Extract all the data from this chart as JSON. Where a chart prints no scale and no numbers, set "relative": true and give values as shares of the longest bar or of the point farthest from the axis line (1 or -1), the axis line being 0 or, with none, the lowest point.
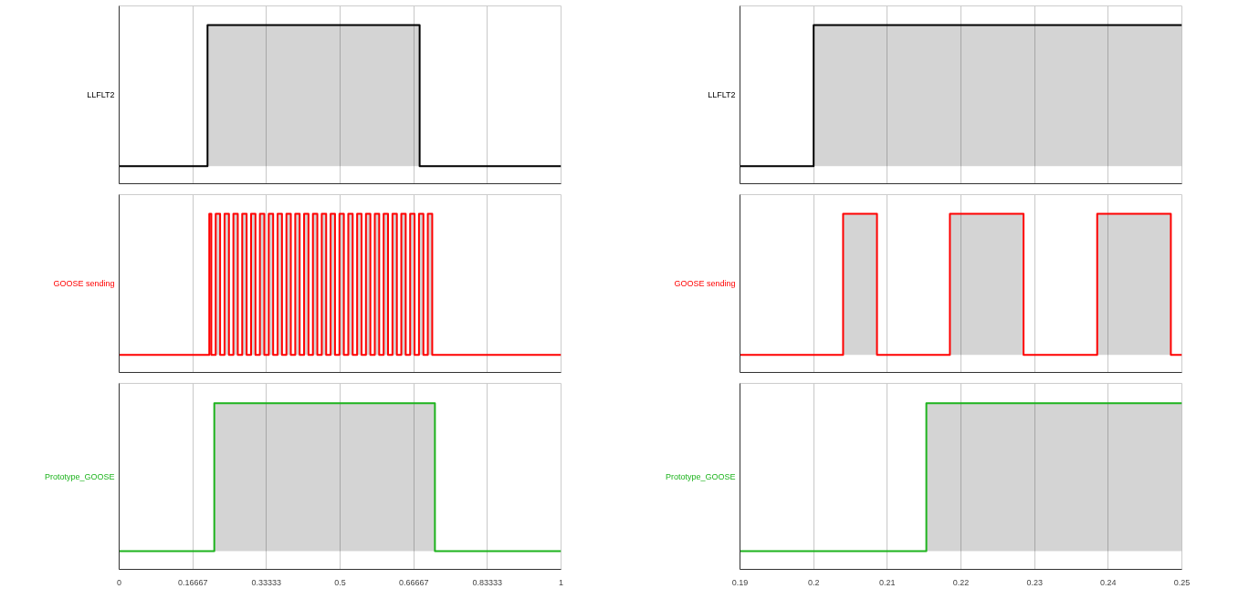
{
  "chart_data": [
    {
      "type": "area",
      "relative": true,
      "ylabel": "LLFLT2",
      "xlim": [
        0,
        1
      ],
      "xticks": [
        0,
        0.16667,
        0.33333,
        0.5,
        0.66667,
        0.83333,
        1
      ],
      "grid": "x",
      "tick_labels": false,
      "marker": "none",
      "series": [
        {
          "color": "#000000",
          "x": [
            0,
            0.2,
            0.2,
            0.68,
            0.68,
            1
          ],
          "values": [
            0.11,
            0.11,
            1,
            1,
            0.11,
            0.11
          ]
        }
      ]
    },
    {
      "type": "area",
      "relative": true,
      "ylabel": "GOOSE sending",
      "xlim": [
        0,
        1
      ],
      "xticks": [
        0,
        0.16667,
        0.33333,
        0.5,
        0.66667,
        0.83333,
        1
      ],
      "grid": "x",
      "tick_labels": false,
      "marker": "none",
      "series": [
        {
          "color": "#ff0000",
          "x": [
            0,
            0.204,
            0.204,
            0.2086,
            0.2086,
            0.2185,
            0.2185,
            0.2285,
            0.2285,
            0.2385,
            0.2385,
            0.2485,
            0.2485,
            0.2585,
            0.2585,
            0.2685,
            0.2685,
            0.2785,
            0.2785,
            0.2885,
            0.2885,
            0.2985,
            0.2985,
            0.3085,
            0.3085,
            0.3185,
            0.3185,
            0.3285,
            0.3285,
            0.3385,
            0.3385,
            0.3485,
            0.3485,
            0.3585,
            0.3585,
            0.3685,
            0.3685,
            0.3785,
            0.3785,
            0.3885,
            0.3885,
            0.3985,
            0.3985,
            0.4085,
            0.4085,
            0.4185,
            0.4185,
            0.4285,
            0.4285,
            0.4385,
            0.4385,
            0.4485,
            0.4485,
            0.4585,
            0.4585,
            0.4685,
            0.4685,
            0.4785,
            0.4785,
            0.4885,
            0.4885,
            0.4985,
            0.4985,
            0.5085,
            0.5085,
            0.5185,
            0.5185,
            0.5285,
            0.5285,
            0.5385,
            0.5385,
            0.5485,
            0.5485,
            0.5585,
            0.5585,
            0.5685,
            0.5685,
            0.5785,
            0.5785,
            0.5885,
            0.5885,
            0.5985,
            0.5985,
            0.6085,
            0.6085,
            0.6185,
            0.6185,
            0.6285,
            0.6285,
            0.6385,
            0.6385,
            0.6485,
            0.6485,
            0.6585,
            0.6585,
            0.6685,
            0.6685,
            0.6785,
            0.6785,
            0.6885,
            0.6885,
            0.6985,
            0.6985,
            0.7085,
            0.7085,
            1
          ],
          "values": [
            0.11,
            0.11,
            1,
            1,
            0.11,
            0.11,
            1,
            1,
            0.11,
            0.11,
            1,
            1,
            0.11,
            0.11,
            1,
            1,
            0.11,
            0.11,
            1,
            1,
            0.11,
            0.11,
            1,
            1,
            0.11,
            0.11,
            1,
            1,
            0.11,
            0.11,
            1,
            1,
            0.11,
            0.11,
            1,
            1,
            0.11,
            0.11,
            1,
            1,
            0.11,
            0.11,
            1,
            1,
            0.11,
            0.11,
            1,
            1,
            0.11,
            0.11,
            1,
            1,
            0.11,
            0.11,
            1,
            1,
            0.11,
            0.11,
            1,
            1,
            0.11,
            0.11,
            1,
            1,
            0.11,
            0.11,
            1,
            1,
            0.11,
            0.11,
            1,
            1,
            0.11,
            0.11,
            1,
            1,
            0.11,
            0.11,
            1,
            1,
            0.11,
            0.11,
            1,
            1,
            0.11,
            0.11,
            1,
            1,
            0.11,
            0.11,
            1,
            1,
            0.11,
            0.11,
            1,
            1,
            0.11,
            0.11,
            1,
            1,
            0.11,
            0.11,
            1,
            1,
            0.11,
            0.11
          ]
        }
      ]
    },
    {
      "type": "area",
      "relative": true,
      "ylabel": "Prototype_GOOSE",
      "xlim": [
        0,
        1
      ],
      "xticks": [
        0,
        {
          "value": 0.16667,
          "label": "0.16667"
        },
        {
          "value": 0.33333,
          "label": "0.33333"
        },
        0.5,
        {
          "value": 0.66667,
          "label": "0.66667"
        },
        {
          "value": 0.83333,
          "label": "0.83333"
        },
        1
      ],
      "grid": "x",
      "tick_labels": "x",
      "marker": "none",
      "series": [
        {
          "color": "#1db31d",
          "x": [
            0,
            0.2153,
            0.2153,
            0.7146,
            0.7146,
            1
          ],
          "values": [
            0.11,
            0.11,
            1,
            1,
            0.11,
            0.11
          ]
        }
      ]
    },
    {
      "type": "area",
      "relative": true,
      "ylabel": "LLFLT2",
      "xlim": [
        0.19,
        0.25
      ],
      "xticks": [
        0.19,
        0.2,
        0.21,
        0.22,
        0.23,
        0.24,
        0.25
      ],
      "grid": "x",
      "tick_labels": false,
      "marker": "none",
      "series": [
        {
          "color": "#000000",
          "x": [
            0.19,
            0.2,
            0.2,
            0.25
          ],
          "values": [
            0.11,
            0.11,
            1,
            1
          ]
        }
      ]
    },
    {
      "type": "area",
      "relative": true,
      "ylabel": "GOOSE sending",
      "xlim": [
        0.19,
        0.25
      ],
      "xticks": [
        0.19,
        0.2,
        0.21,
        0.22,
        0.23,
        0.24,
        0.25
      ],
      "grid": "x",
      "tick_labels": false,
      "marker": "none",
      "series": [
        {
          "color": "#ff0000",
          "x": [
            0.19,
            0.204,
            0.204,
            0.2086,
            0.2086,
            0.2185,
            0.2185,
            0.2285,
            0.2285,
            0.2385,
            0.2385,
            0.2485,
            0.2485,
            0.25
          ],
          "values": [
            0.11,
            0.11,
            1,
            1,
            0.11,
            0.11,
            1,
            1,
            0.11,
            0.11,
            1,
            1,
            0.11,
            0.11
          ]
        }
      ]
    },
    {
      "type": "area",
      "relative": true,
      "ylabel": "Prototype_GOOSE",
      "xlim": [
        0.19,
        0.25
      ],
      "xticks": [
        0.19,
        0.2,
        0.21,
        0.22,
        0.23,
        0.24,
        0.25
      ],
      "grid": "x",
      "tick_labels": "x",
      "marker": "none",
      "series": [
        {
          "color": "#1db31d",
          "x": [
            0.19,
            0.2153,
            0.2153,
            0.25
          ],
          "values": [
            0.11,
            0.11,
            1,
            1
          ]
        }
      ]
    }
  ]
}
